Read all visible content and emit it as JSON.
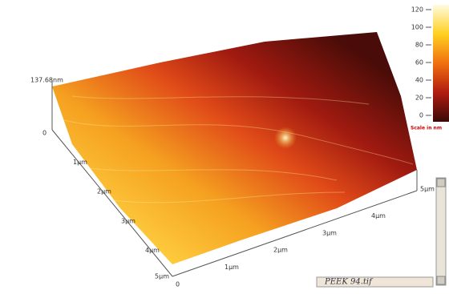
{
  "z_label": "137.68nm",
  "colorbar": {
    "ticks": [
      120,
      100,
      80,
      60,
      40,
      20,
      0
    ],
    "caption": "Scale in nm"
  },
  "axis_left": [
    "0",
    "1µm",
    "2µm",
    "3µm",
    "4µm",
    "5µm"
  ],
  "axis_right": [
    "0",
    "1µm",
    "2µm",
    "3µm",
    "4µm",
    "5µm"
  ],
  "filename": "PEEK 94.tif"
}
